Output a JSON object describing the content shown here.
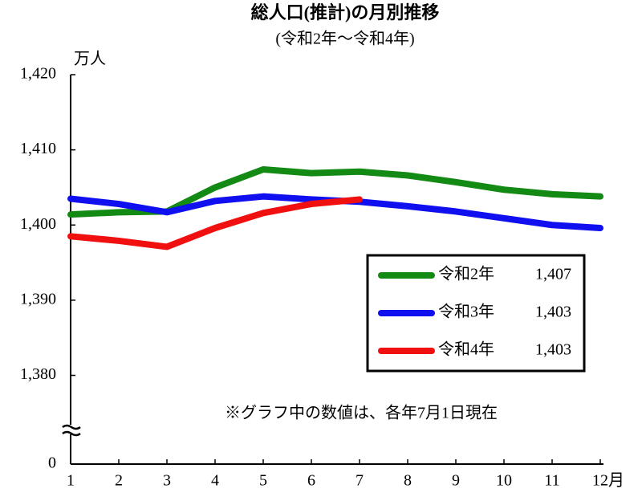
{
  "chart_data": {
    "type": "line",
    "title": "総人口(推計)の月別推移",
    "subtitle": "(令和2年～令和4年)",
    "y_unit": "万人",
    "note": "※グラフ中の数値は、各年7月1日現在",
    "categories": [
      "1",
      "2",
      "3",
      "4",
      "5",
      "6",
      "7",
      "8",
      "9",
      "10",
      "11",
      "12月"
    ],
    "series": [
      {
        "name": "令和2年",
        "label": "1,407",
        "color": "#138a13",
        "values": [
          1401.4,
          1401.7,
          1401.8,
          1405.0,
          1407.4,
          1406.9,
          1407.1,
          1406.6,
          1405.7,
          1404.7,
          1404.1,
          1403.8
        ]
      },
      {
        "name": "令和3年",
        "label": "1,403",
        "color": "#0f0ff0",
        "values": [
          1403.5,
          1402.8,
          1401.7,
          1403.2,
          1403.8,
          1403.4,
          1403.1,
          1402.5,
          1401.8,
          1400.9,
          1400.0,
          1399.6
        ]
      },
      {
        "name": "令和4年",
        "label": "1,403",
        "color": "#f01010",
        "values": [
          1398.5,
          1397.9,
          1397.1,
          1399.6,
          1401.6,
          1402.8,
          1403.4,
          null,
          null,
          null,
          null,
          null
        ]
      }
    ],
    "ylim": [
      1368.2,
      1420
    ],
    "yticks": [
      0,
      {
        "value": 1380,
        "label": "1,380"
      },
      {
        "value": 1390,
        "label": "1,390"
      },
      {
        "value": 1400,
        "label": "1,400"
      },
      {
        "value": 1410,
        "label": "1,410"
      },
      {
        "value": 1420,
        "label": "1,420"
      }
    ],
    "axis_break": true
  }
}
